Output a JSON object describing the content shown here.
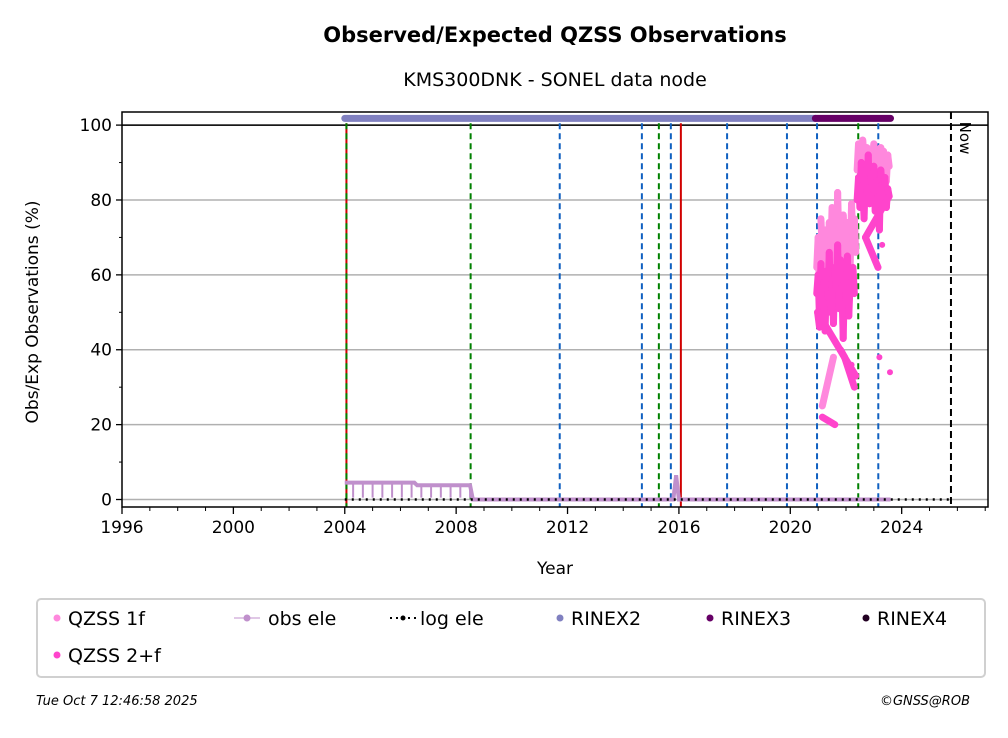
{
  "chart_data": {
    "type": "scatter",
    "title": "Observed/Expected QZSS Observations",
    "subtitle": "KMS300DNK - SONEL data node",
    "xlabel": "Year",
    "ylabel": "Obs/Exp Observations (%)",
    "xlim": [
      1996,
      2027.1
    ],
    "ylim": [
      -2,
      103.5
    ],
    "xticks": [
      1996,
      2000,
      2004,
      2008,
      2012,
      2016,
      2020,
      2024
    ],
    "yticks": [
      0,
      20,
      40,
      60,
      80,
      100
    ],
    "grid": true,
    "legend_position": "bottom",
    "legend": [
      {
        "label": "QZSS 1f",
        "color": "#ff88dd",
        "style": "dot"
      },
      {
        "label": "obs ele",
        "color": "#c090cc",
        "style": "line-dot"
      },
      {
        "label": "log ele",
        "color": "#000000",
        "style": "dotted"
      },
      {
        "label": "RINEX2",
        "color": "#8080c0",
        "style": "dot"
      },
      {
        "label": "RINEX3",
        "color": "#660066",
        "style": "dot"
      },
      {
        "label": "RINEX4",
        "color": "#220022",
        "style": "dot"
      },
      {
        "label": "QZSS 2+f",
        "color": "#ff44cc",
        "style": "dot"
      }
    ],
    "now_label": "Now",
    "event_lines": [
      {
        "year": 2004.06,
        "color": "#d00000",
        "style": "solid"
      },
      {
        "year": 2004.06,
        "color": "#008000",
        "style": "dashed"
      },
      {
        "year": 2008.52,
        "color": "#008000",
        "style": "dashed"
      },
      {
        "year": 2011.72,
        "color": "#1060c0",
        "style": "dashed"
      },
      {
        "year": 2014.67,
        "color": "#1060c0",
        "style": "dashed"
      },
      {
        "year": 2015.28,
        "color": "#008000",
        "style": "dashed"
      },
      {
        "year": 2015.71,
        "color": "#1060c0",
        "style": "dashed"
      },
      {
        "year": 2016.07,
        "color": "#d00000",
        "style": "solid"
      },
      {
        "year": 2017.73,
        "color": "#1060c0",
        "style": "dashed"
      },
      {
        "year": 2019.88,
        "color": "#1060c0",
        "style": "dashed"
      },
      {
        "year": 2020.96,
        "color": "#1060c0",
        "style": "dashed"
      },
      {
        "year": 2022.44,
        "color": "#008000",
        "style": "dashed"
      },
      {
        "year": 2023.16,
        "color": "#1060c0",
        "style": "dashed"
      },
      {
        "year": 2025.77,
        "color": "#000000",
        "style": "dashed",
        "now": true
      }
    ],
    "rinex_bars": [
      {
        "name": "RINEX2",
        "from": 2004.0,
        "to": 2020.9,
        "value": 101.8,
        "color": "#8080c0"
      },
      {
        "name": "RINEX3",
        "from": 2020.9,
        "to": 2023.6,
        "value": 101.8,
        "color": "#660066"
      }
    ],
    "obs_ele": [
      [
        2004.0,
        4.5
      ],
      [
        2006.5,
        4.5
      ],
      [
        2006.6,
        3.8
      ],
      [
        2008.5,
        3.8
      ],
      [
        2008.6,
        0
      ],
      [
        2015.8,
        0
      ],
      [
        2015.9,
        6.5
      ],
      [
        2016.0,
        0
      ],
      [
        2023.6,
        0
      ]
    ],
    "log_ele": [
      [
        2004.0,
        0
      ],
      [
        2025.7,
        0
      ]
    ],
    "series": [
      {
        "name": "QZSS 1f",
        "color": "#ff88dd",
        "points": [
          [
            2020.95,
            62
          ],
          [
            2021.0,
            70
          ],
          [
            2021.05,
            55
          ],
          [
            2021.1,
            75
          ],
          [
            2021.15,
            66
          ],
          [
            2021.2,
            58
          ],
          [
            2021.25,
            72
          ],
          [
            2021.3,
            68
          ],
          [
            2021.35,
            60
          ],
          [
            2021.4,
            74
          ],
          [
            2021.45,
            64
          ],
          [
            2021.5,
            78
          ],
          [
            2021.55,
            57
          ],
          [
            2021.6,
            70
          ],
          [
            2021.65,
            63
          ],
          [
            2021.7,
            82
          ],
          [
            2021.75,
            67
          ],
          [
            2021.8,
            73
          ],
          [
            2021.85,
            61
          ],
          [
            2021.9,
            76
          ],
          [
            2021.95,
            69
          ],
          [
            2022.0,
            65
          ],
          [
            2022.05,
            74
          ],
          [
            2022.1,
            71
          ],
          [
            2022.15,
            62
          ],
          [
            2022.2,
            79
          ],
          [
            2022.25,
            68
          ],
          [
            2022.3,
            75
          ],
          [
            2022.35,
            66
          ],
          [
            2021.15,
            25
          ],
          [
            2021.55,
            38
          ],
          [
            2022.4,
            88
          ],
          [
            2022.45,
            95
          ],
          [
            2022.5,
            90
          ],
          [
            2022.55,
            86
          ],
          [
            2022.6,
            96
          ],
          [
            2022.65,
            92
          ],
          [
            2022.7,
            88
          ],
          [
            2022.75,
            94
          ],
          [
            2022.8,
            85
          ],
          [
            2022.85,
            93
          ],
          [
            2022.9,
            89
          ],
          [
            2022.95,
            91
          ],
          [
            2023.0,
            95
          ],
          [
            2023.05,
            87
          ],
          [
            2023.1,
            92
          ],
          [
            2023.15,
            90
          ],
          [
            2023.2,
            86
          ],
          [
            2023.25,
            94
          ],
          [
            2023.3,
            88
          ],
          [
            2023.35,
            93
          ],
          [
            2023.4,
            90
          ],
          [
            2023.45,
            85
          ],
          [
            2023.5,
            92
          ],
          [
            2023.55,
            89
          ]
        ]
      },
      {
        "name": "QZSS 2+f",
        "color": "#ff44cc",
        "points": [
          [
            2020.95,
            55
          ],
          [
            2021.0,
            60
          ],
          [
            2021.05,
            48
          ],
          [
            2021.1,
            63
          ],
          [
            2021.15,
            52
          ],
          [
            2021.2,
            58
          ],
          [
            2021.25,
            45
          ],
          [
            2021.3,
            61
          ],
          [
            2021.35,
            54
          ],
          [
            2021.4,
            66
          ],
          [
            2021.45,
            50
          ],
          [
            2021.5,
            59
          ],
          [
            2021.55,
            47
          ],
          [
            2021.6,
            62
          ],
          [
            2021.65,
            56
          ],
          [
            2021.7,
            68
          ],
          [
            2021.75,
            51
          ],
          [
            2021.8,
            64
          ],
          [
            2021.85,
            57
          ],
          [
            2021.9,
            43
          ],
          [
            2021.95,
            60
          ],
          [
            2022.0,
            53
          ],
          [
            2022.05,
            65
          ],
          [
            2022.1,
            49
          ],
          [
            2022.15,
            58
          ],
          [
            2022.2,
            36
          ],
          [
            2022.25,
            62
          ],
          [
            2022.3,
            55
          ],
          [
            2022.35,
            33
          ],
          [
            2020.98,
            50
          ],
          [
            2021.05,
            46
          ],
          [
            2021.15,
            22
          ],
          [
            2021.6,
            20
          ],
          [
            2021.8,
            40
          ],
          [
            2021.95,
            38
          ],
          [
            2022.3,
            30
          ],
          [
            2022.4,
            80
          ],
          [
            2022.45,
            86
          ],
          [
            2022.5,
            78
          ],
          [
            2022.55,
            90
          ],
          [
            2022.6,
            84
          ],
          [
            2022.65,
            75
          ],
          [
            2022.7,
            88
          ],
          [
            2022.75,
            82
          ],
          [
            2022.8,
            92
          ],
          [
            2022.85,
            79
          ],
          [
            2022.9,
            87
          ],
          [
            2022.95,
            83
          ],
          [
            2023.0,
            89
          ],
          [
            2023.05,
            77
          ],
          [
            2023.1,
            85
          ],
          [
            2023.15,
            81
          ],
          [
            2023.2,
            72
          ],
          [
            2023.25,
            88
          ],
          [
            2023.3,
            84
          ],
          [
            2023.35,
            80
          ],
          [
            2023.4,
            86
          ],
          [
            2023.45,
            78
          ],
          [
            2023.5,
            83
          ],
          [
            2023.55,
            81
          ],
          [
            2022.7,
            70
          ],
          [
            2023.15,
            62
          ],
          [
            2023.2,
            38
          ],
          [
            2023.3,
            68
          ],
          [
            2023.58,
            34
          ]
        ]
      }
    ]
  },
  "footer": {
    "timestamp": "Tue Oct  7 12:46:58 2025",
    "credit": "©GNSS@ROB"
  }
}
